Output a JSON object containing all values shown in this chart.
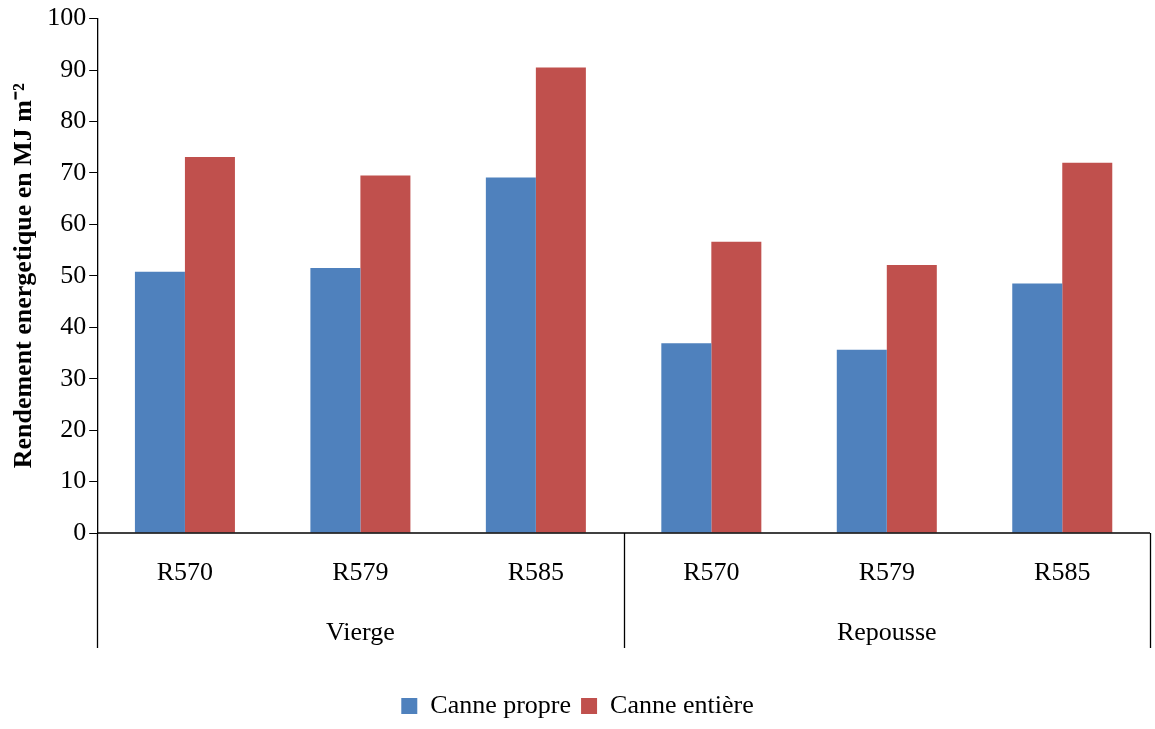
{
  "chart_data": {
    "type": "bar",
    "ylabel": "Rendement energetique en MJ m⁻²",
    "categories": [
      "R570",
      "R579",
      "R585",
      "R570",
      "R579",
      "R585"
    ],
    "series": [
      {
        "name": "Canne propre",
        "color": "#4f81bd",
        "values": [
          50.8,
          51.5,
          69.1,
          36.9,
          35.6,
          48.5
        ]
      },
      {
        "name": "Canne entière",
        "color": "#c0504d",
        "values": [
          73.1,
          69.5,
          90.5,
          56.6,
          52.1,
          72.0
        ]
      }
    ],
    "annotations": [
      "Vierge",
      "Repousse"
    ],
    "ylim": [
      0,
      100
    ],
    "yticks": [
      0,
      10,
      20,
      30,
      40,
      50,
      60,
      70,
      80,
      90,
      100
    ],
    "grid": false,
    "legend": "bottom"
  }
}
